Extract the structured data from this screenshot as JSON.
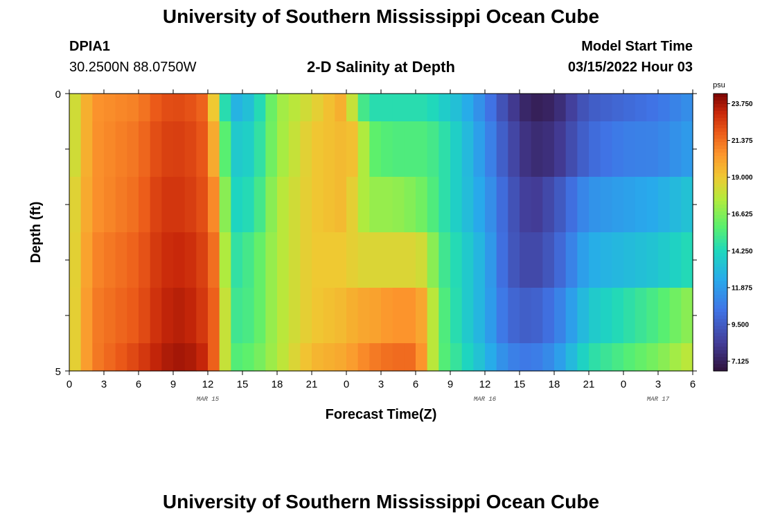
{
  "header": {
    "title": "University of Southern Mississippi Ocean Cube",
    "station_id": "DPIA1",
    "coordinates": "30.2500N  88.0750W",
    "subtitle": "2-D Salinity at Depth",
    "model_start_label": "Model Start Time",
    "model_start_value": "03/15/2022 Hour 03"
  },
  "footer": {
    "title": "University of Southern Mississippi Ocean Cube"
  },
  "chart_data": {
    "type": "heatmap",
    "title": "2-D Salinity at Depth",
    "xlabel": "Forecast Time(Z)",
    "ylabel": "Depth (ft)",
    "x_start_hour": 0,
    "x_end_hour": 54,
    "x_tick_labels": [
      "0",
      "3",
      "6",
      "9",
      "12",
      "15",
      "18",
      "21",
      "0",
      "3",
      "6",
      "9",
      "12",
      "15",
      "18",
      "21",
      "0",
      "3",
      "6"
    ],
    "date_labels": [
      {
        "label": "MAR 15",
        "hour": 12
      },
      {
        "label": "MAR 16",
        "hour": 36
      },
      {
        "label": "MAR 17",
        "hour": 51
      }
    ],
    "y_tick_labels": [
      "0",
      "5"
    ],
    "ylim": [
      0,
      5
    ],
    "colorbar": {
      "unit": "psu",
      "min": 6.5,
      "max": 24.4,
      "tick_labels": [
        "23.750",
        "21.375",
        "19.000",
        "16.625",
        "14.250",
        "11.875",
        "9.500",
        "7.125"
      ],
      "tick_values": [
        23.75,
        21.375,
        19.0,
        16.625,
        14.25,
        11.875,
        9.5,
        7.125
      ]
    },
    "layers": [
      {
        "depth_top": 0.0,
        "depth_bottom": 0.5
      },
      {
        "depth_top": 0.5,
        "depth_bottom": 1.5
      },
      {
        "depth_top": 1.5,
        "depth_bottom": 2.5
      },
      {
        "depth_top": 2.5,
        "depth_bottom": 3.5
      },
      {
        "depth_top": 3.5,
        "depth_bottom": 4.5
      },
      {
        "depth_top": 4.5,
        "depth_bottom": 5.0
      }
    ],
    "salinity_keypoints": [
      {
        "hour": 0,
        "values": [
          17.5,
          17.5,
          18.0,
          18.0,
          18.0,
          18.0
        ]
      },
      {
        "hour": 2,
        "values": [
          20.5,
          20.5,
          20.5,
          20.8,
          21.0,
          21.0
        ]
      },
      {
        "hour": 6,
        "values": [
          21.0,
          21.3,
          21.5,
          21.8,
          22.0,
          22.5
        ]
      },
      {
        "hour": 8,
        "values": [
          22.2,
          22.5,
          22.8,
          23.0,
          23.2,
          23.5
        ]
      },
      {
        "hour": 10,
        "values": [
          22.3,
          22.6,
          22.8,
          23.2,
          23.5,
          23.8
        ]
      },
      {
        "hour": 12,
        "values": [
          21.5,
          21.8,
          22.0,
          22.3,
          22.5,
          23.0
        ]
      },
      {
        "hour": 13,
        "values": [
          16.5,
          18.0,
          19.5,
          20.5,
          21.0,
          20.5
        ]
      },
      {
        "hour": 14,
        "values": [
          12.5,
          13.5,
          14.0,
          14.5,
          15.0,
          15.5
        ]
      },
      {
        "hour": 16,
        "values": [
          13.5,
          14.0,
          14.5,
          15.5,
          15.5,
          16.0
        ]
      },
      {
        "hour": 18,
        "values": [
          17.0,
          17.0,
          17.5,
          17.5,
          17.5,
          17.5
        ]
      },
      {
        "hour": 21,
        "values": [
          18.5,
          19.0,
          19.0,
          19.0,
          19.0,
          19.5
        ]
      },
      {
        "hour": 24,
        "values": [
          20.0,
          19.5,
          19.5,
          19.0,
          19.5,
          20.0
        ]
      },
      {
        "hour": 25,
        "values": [
          16.0,
          19.0,
          18.0,
          18.5,
          20.0,
          20.5
        ]
      },
      {
        "hour": 26,
        "values": [
          14.5,
          16.0,
          17.0,
          18.5,
          20.0,
          21.0
        ]
      },
      {
        "hour": 28,
        "values": [
          14.5,
          15.5,
          17.0,
          18.5,
          20.5,
          21.5
        ]
      },
      {
        "hour": 30,
        "values": [
          14.5,
          15.5,
          16.5,
          18.5,
          20.5,
          21.5
        ]
      },
      {
        "hour": 31,
        "values": [
          14.5,
          15.5,
          16.0,
          18.0,
          19.5,
          19.5
        ]
      },
      {
        "hour": 32,
        "values": [
          14.0,
          15.0,
          15.0,
          15.5,
          16.0,
          16.0
        ]
      },
      {
        "hour": 34,
        "values": [
          13.0,
          13.5,
          13.5,
          14.0,
          14.0,
          14.5
        ]
      },
      {
        "hour": 36,
        "values": [
          11.0,
          11.5,
          12.0,
          12.5,
          12.5,
          13.0
        ]
      },
      {
        "hour": 38,
        "values": [
          8.5,
          9.0,
          9.5,
          9.5,
          10.0,
          11.0
        ]
      },
      {
        "hour": 40,
        "values": [
          7.0,
          7.5,
          8.0,
          8.5,
          9.5,
          10.5
        ]
      },
      {
        "hour": 42,
        "values": [
          7.3,
          7.8,
          9.0,
          9.5,
          10.5,
          11.5
        ]
      },
      {
        "hour": 45,
        "values": [
          9.5,
          10.0,
          11.5,
          12.5,
          13.5,
          14.5
        ]
      },
      {
        "hour": 48,
        "values": [
          10.0,
          10.8,
          12.0,
          13.0,
          14.5,
          15.5
        ]
      },
      {
        "hour": 51,
        "values": [
          10.5,
          11.0,
          12.5,
          13.5,
          15.5,
          16.5
        ]
      },
      {
        "hour": 54,
        "values": [
          11.5,
          12.0,
          13.5,
          14.5,
          17.0,
          18.0
        ]
      }
    ]
  }
}
